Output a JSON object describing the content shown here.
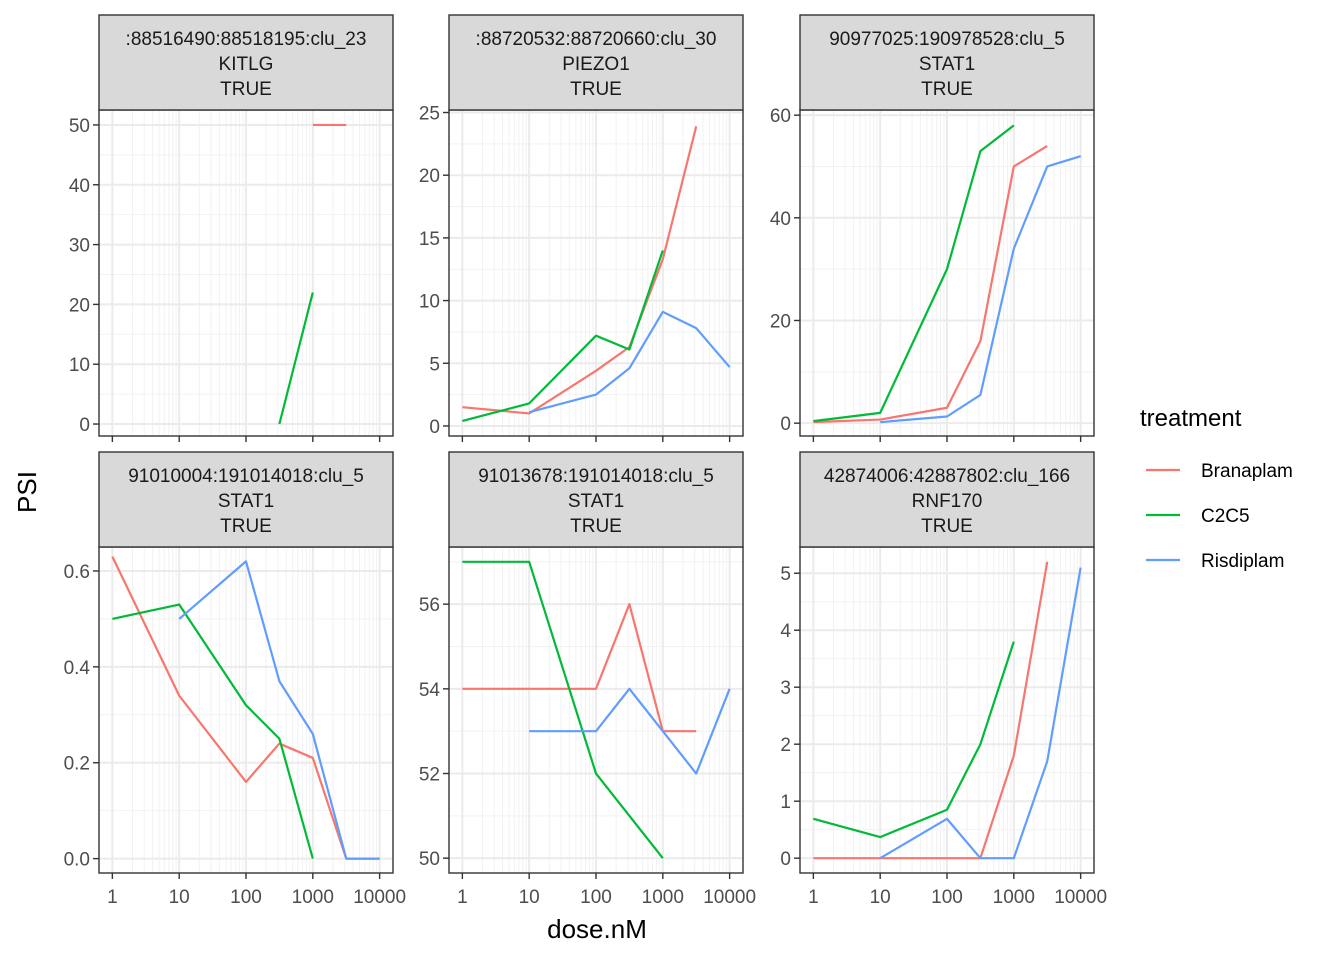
{
  "chart_data": {
    "type": "line",
    "xlabel": "dose.nM",
    "ylabel": "PSI",
    "x_scale": "log10",
    "x_ticks": [
      1,
      10,
      100,
      1000,
      10000
    ],
    "x_tick_labels": [
      "1",
      "10",
      "100",
      "1000",
      "10000"
    ],
    "legend": {
      "title": "treatment",
      "position": "right",
      "entries": [
        {
          "name": "Branaplam",
          "color": "#F8766D"
        },
        {
          "name": "C2C5",
          "color": "#00BA38"
        },
        {
          "name": "Risdiplam",
          "color": "#619CFF"
        }
      ]
    },
    "panels": [
      {
        "strip": [
          ":88516490:88518195:clu_23",
          "KITLG",
          "TRUE"
        ],
        "ylim": [
          -2,
          52.5
        ],
        "y_ticks": [
          0,
          10,
          20,
          30,
          40,
          50
        ],
        "y_tick_labels": [
          "0",
          "10",
          "20",
          "30",
          "40",
          "50"
        ],
        "series": [
          {
            "name": "Branaplam",
            "x": [
              1000,
              3162
            ],
            "y": [
              50,
              50
            ]
          },
          {
            "name": "C2C5",
            "x": [
              316,
              1000
            ],
            "y": [
              0,
              22
            ]
          },
          {
            "name": "Risdiplam",
            "x": [],
            "y": []
          }
        ]
      },
      {
        "strip": [
          ":88720532:88720660:clu_30",
          "PIEZO1",
          "TRUE"
        ],
        "ylim": [
          -0.8,
          25.2
        ],
        "y_ticks": [
          0,
          5,
          10,
          15,
          20,
          25
        ],
        "y_tick_labels": [
          "0",
          "5",
          "10",
          "15",
          "20",
          "25"
        ],
        "series": [
          {
            "name": "Branaplam",
            "x": [
              1,
              10,
              100,
              316,
              1000,
              3162
            ],
            "y": [
              1.5,
              1.0,
              4.4,
              6.3,
              13.3,
              23.9
            ]
          },
          {
            "name": "C2C5",
            "x": [
              1,
              10,
              100,
              316,
              1000
            ],
            "y": [
              0.4,
              1.8,
              7.2,
              6.1,
              14.0
            ]
          },
          {
            "name": "Risdiplam",
            "x": [
              10,
              100,
              316,
              1000,
              3162,
              10000
            ],
            "y": [
              1.1,
              2.5,
              4.6,
              9.1,
              7.8,
              4.7
            ]
          }
        ]
      },
      {
        "strip": [
          "90977025:190978528:clu_5",
          "STAT1",
          "TRUE"
        ],
        "ylim": [
          -2.5,
          61
        ],
        "y_ticks": [
          0,
          20,
          40,
          60
        ],
        "y_tick_labels": [
          "0",
          "20",
          "40",
          "60"
        ],
        "series": [
          {
            "name": "Branaplam",
            "x": [
              1,
              10,
              100,
              316,
              1000,
              3162
            ],
            "y": [
              0.2,
              0.7,
              3.0,
              16.0,
              50.0,
              54.0
            ]
          },
          {
            "name": "C2C5",
            "x": [
              1,
              10,
              100,
              316,
              1000
            ],
            "y": [
              0.4,
              2.0,
              30.0,
              53.0,
              58.0
            ]
          },
          {
            "name": "Risdiplam",
            "x": [
              10,
              100,
              316,
              1000,
              3162,
              10000
            ],
            "y": [
              0.2,
              1.3,
              5.5,
              34.0,
              50.0,
              52.0
            ]
          }
        ]
      },
      {
        "strip": [
          "91010004:191014018:clu_5",
          "STAT1",
          "TRUE"
        ],
        "ylim": [
          -0.03,
          0.65
        ],
        "y_ticks": [
          0.0,
          0.2,
          0.4,
          0.6
        ],
        "y_tick_labels": [
          "0.0",
          "0.2",
          "0.4",
          "0.6"
        ],
        "series": [
          {
            "name": "Branaplam",
            "x": [
              1,
              10,
              100,
              316,
              1000,
              3162,
              10000
            ],
            "y": [
              0.63,
              0.34,
              0.16,
              0.24,
              0.21,
              0.0,
              0.0
            ]
          },
          {
            "name": "C2C5",
            "x": [
              1,
              10,
              100,
              316,
              1000
            ],
            "y": [
              0.5,
              0.53,
              0.32,
              0.25,
              0.0
            ]
          },
          {
            "name": "Risdiplam",
            "x": [
              10,
              100,
              316,
              1000,
              3162,
              10000
            ],
            "y": [
              0.5,
              0.62,
              0.37,
              0.26,
              0.0,
              0.0
            ]
          }
        ]
      },
      {
        "strip": [
          "91013678:191014018:clu_5",
          "STAT1",
          "TRUE"
        ],
        "ylim": [
          49.65,
          57.35
        ],
        "y_ticks": [
          50,
          52,
          54,
          56
        ],
        "y_tick_labels": [
          "50",
          "52",
          "54",
          "56"
        ],
        "series": [
          {
            "name": "Branaplam",
            "x": [
              1,
              10,
              100,
              316,
              1000,
              3162
            ],
            "y": [
              54,
              54,
              54,
              56,
              53,
              53
            ]
          },
          {
            "name": "C2C5",
            "x": [
              1,
              10,
              100,
              316,
              1000
            ],
            "y": [
              57,
              57,
              52,
              51,
              50
            ]
          },
          {
            "name": "Risdiplam",
            "x": [
              10,
              100,
              316,
              1000,
              3162,
              10000
            ],
            "y": [
              53,
              53,
              54,
              53,
              52,
              54
            ]
          }
        ]
      },
      {
        "strip": [
          "42874006:42887802:clu_166",
          "RNF170",
          "TRUE"
        ],
        "ylim": [
          -0.26,
          5.46
        ],
        "y_ticks": [
          0,
          1,
          2,
          3,
          4,
          5
        ],
        "y_tick_labels": [
          "0",
          "1",
          "2",
          "3",
          "4",
          "5"
        ],
        "series": [
          {
            "name": "Branaplam",
            "x": [
              1,
              10,
              100,
              316,
              1000,
              3162
            ],
            "y": [
              0.0,
              0.0,
              0.0,
              0.0,
              1.8,
              5.2
            ]
          },
          {
            "name": "C2C5",
            "x": [
              1,
              10,
              100,
              316,
              1000
            ],
            "y": [
              0.69,
              0.37,
              0.85,
              2.0,
              3.8
            ]
          },
          {
            "name": "Risdiplam",
            "x": [
              10,
              100,
              316,
              1000,
              3162,
              10000
            ],
            "y": [
              0.0,
              0.69,
              0.0,
              0.0,
              1.7,
              5.1
            ]
          }
        ]
      }
    ]
  }
}
